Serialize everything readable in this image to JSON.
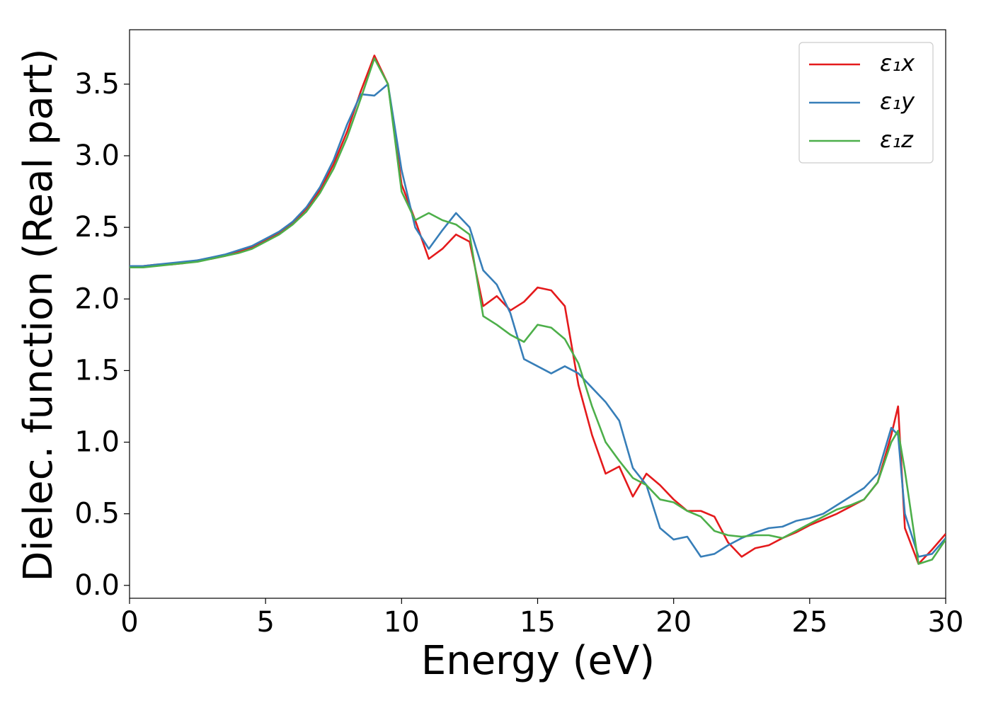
{
  "chart_data": {
    "type": "line",
    "xlabel": "Energy (eV)",
    "ylabel": "Dielec. function (Real part)",
    "x": [
      0,
      0.5,
      1,
      1.5,
      2,
      2.5,
      3,
      3.5,
      4,
      4.5,
      5,
      5.5,
      6,
      6.5,
      7,
      7.5,
      8,
      8.5,
      9,
      9.5,
      10,
      10.5,
      11,
      11.5,
      12,
      12.5,
      13,
      13.5,
      14,
      14.5,
      15,
      15.5,
      16,
      16.5,
      17,
      17.5,
      18,
      18.5,
      19,
      19.5,
      20,
      20.5,
      21,
      21.5,
      22,
      22.5,
      23,
      23.5,
      24,
      24.5,
      25,
      25.5,
      26,
      26.5,
      27,
      27.5,
      28,
      28.25,
      28.5,
      29,
      29.5,
      30
    ],
    "series": [
      {
        "name": "ε₁x",
        "color": "#e41a1c",
        "values": [
          2.23,
          2.23,
          2.24,
          2.24,
          2.25,
          2.27,
          2.28,
          2.3,
          2.33,
          2.36,
          2.41,
          2.46,
          2.53,
          2.63,
          2.76,
          2.94,
          3.17,
          3.45,
          3.7,
          3.5,
          2.8,
          2.55,
          2.28,
          2.35,
          2.45,
          2.4,
          1.95,
          2.02,
          1.92,
          1.98,
          2.08,
          2.06,
          1.95,
          1.4,
          1.05,
          0.78,
          0.83,
          0.62,
          0.78,
          0.7,
          0.6,
          0.52,
          0.52,
          0.48,
          0.3,
          0.2,
          0.26,
          0.28,
          0.33,
          0.37,
          0.42,
          0.46,
          0.5,
          0.55,
          0.6,
          0.72,
          1.05,
          1.25,
          0.4,
          0.15,
          0.25,
          0.36
        ]
      },
      {
        "name": "ε₁y",
        "color": "#377eb8",
        "values": [
          2.23,
          2.23,
          2.24,
          2.25,
          2.26,
          2.27,
          2.29,
          2.31,
          2.34,
          2.37,
          2.42,
          2.47,
          2.54,
          2.64,
          2.78,
          2.97,
          3.22,
          3.43,
          3.42,
          3.5,
          2.9,
          2.5,
          2.35,
          2.48,
          2.6,
          2.5,
          2.2,
          2.1,
          1.9,
          1.58,
          1.53,
          1.48,
          1.53,
          1.48,
          1.38,
          1.28,
          1.15,
          0.82,
          0.7,
          0.4,
          0.32,
          0.34,
          0.2,
          0.22,
          0.28,
          0.33,
          0.37,
          0.4,
          0.41,
          0.45,
          0.47,
          0.5,
          0.56,
          0.62,
          0.68,
          0.78,
          1.1,
          1.05,
          0.5,
          0.2,
          0.22,
          0.33
        ]
      },
      {
        "name": "ε₁z",
        "color": "#4daf4a",
        "values": [
          2.22,
          2.22,
          2.23,
          2.24,
          2.25,
          2.26,
          2.28,
          2.3,
          2.32,
          2.35,
          2.4,
          2.45,
          2.52,
          2.61,
          2.74,
          2.91,
          3.13,
          3.4,
          3.68,
          3.5,
          2.75,
          2.55,
          2.6,
          2.55,
          2.52,
          2.45,
          1.88,
          1.82,
          1.75,
          1.7,
          1.82,
          1.8,
          1.72,
          1.55,
          1.25,
          1.0,
          0.87,
          0.75,
          0.7,
          0.6,
          0.58,
          0.52,
          0.48,
          0.38,
          0.35,
          0.34,
          0.35,
          0.35,
          0.33,
          0.38,
          0.43,
          0.48,
          0.53,
          0.56,
          0.6,
          0.72,
          1.0,
          1.08,
          0.8,
          0.15,
          0.18,
          0.32
        ]
      }
    ],
    "xlim": [
      0,
      30
    ],
    "xticks": [
      0,
      5,
      10,
      15,
      20,
      25,
      30
    ],
    "ylim": [
      -0.09,
      3.88
    ],
    "yticks": [
      {
        "value": 0,
        "label": "0.0"
      },
      0.5,
      {
        "value": 1,
        "label": "1.0"
      },
      1.5,
      {
        "value": 2,
        "label": "2.0"
      },
      2.5,
      {
        "value": 3,
        "label": "3.0"
      },
      3.5
    ],
    "grid": false,
    "legend": "upper right"
  }
}
